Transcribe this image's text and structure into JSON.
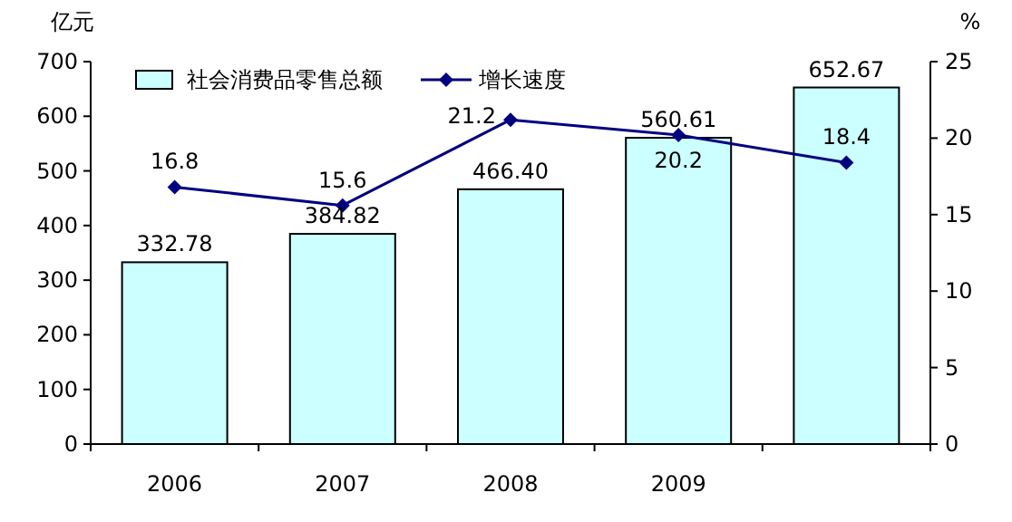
{
  "chart_data": {
    "type": "bar",
    "categories": [
      "2006",
      "2007",
      "2008",
      "2009",
      null
    ],
    "ylabel": "亿元",
    "y2label": "%",
    "ylim": [
      0,
      700
    ],
    "yticks": [
      0,
      100,
      200,
      300,
      400,
      500,
      600,
      700
    ],
    "y2lim": [
      0,
      25
    ],
    "y2ticks": [
      0,
      5,
      10,
      15,
      20,
      25
    ],
    "legend": "top left",
    "grid": false,
    "series": [
      {
        "name": "社会消费品零售总额",
        "color": "#ccffff",
        "values": [
          332.78,
          384.82,
          466.4,
          560.61,
          652.67
        ],
        "value_labels": [
          "332.78",
          "384.82",
          "466.40",
          "560.61",
          "652.67"
        ]
      },
      {
        "name": "增长速度",
        "type": "line",
        "axis": "y2",
        "color": "#000080",
        "marker": "diamond",
        "values": [
          16.8,
          15.6,
          21.2,
          20.2,
          18.4
        ],
        "value_labels": [
          "16.8",
          "15.6",
          "21.2",
          "20.2",
          "18.4"
        ]
      }
    ]
  }
}
